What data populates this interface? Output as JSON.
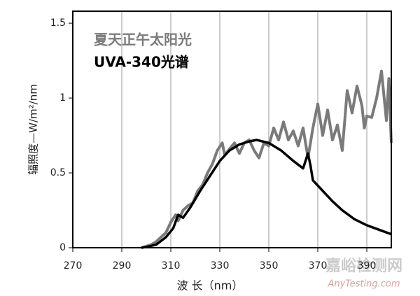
{
  "chart_data": {
    "type": "line",
    "xlabel": "波 长（nm）",
    "ylabel": "辐照度—W/m²/nm",
    "xlim": [
      270,
      400
    ],
    "xticks": [
      270,
      290,
      310,
      330,
      350,
      370,
      390
    ],
    "ylim": [
      0,
      1.58
    ],
    "yticks": [
      0,
      0.5,
      1,
      1.5
    ],
    "xgrid": true,
    "series": [
      {
        "name": "夏天正午太阳光",
        "color": "#7a7a7a",
        "x": [
          298,
          300,
          302,
          304,
          306,
          308,
          310,
          312,
          313,
          315,
          317,
          319,
          321,
          323,
          325,
          327,
          329,
          331,
          332,
          334,
          336,
          338,
          340,
          342,
          344,
          346,
          348,
          350,
          352,
          354,
          356,
          358,
          360,
          362,
          364,
          366,
          368,
          370,
          372,
          374,
          376,
          378,
          380,
          382,
          384,
          386,
          388,
          389,
          390,
          392,
          394,
          396,
          398,
          399,
          400
        ],
        "values": [
          0,
          0.01,
          0.02,
          0.04,
          0.07,
          0.1,
          0.17,
          0.22,
          0.18,
          0.25,
          0.28,
          0.3,
          0.38,
          0.42,
          0.5,
          0.56,
          0.65,
          0.7,
          0.62,
          0.66,
          0.7,
          0.63,
          0.7,
          0.72,
          0.65,
          0.6,
          0.7,
          0.68,
          0.8,
          0.72,
          0.84,
          0.72,
          0.78,
          0.68,
          0.8,
          0.6,
          0.8,
          0.96,
          0.75,
          0.92,
          0.72,
          0.82,
          0.65,
          1.05,
          0.9,
          1.08,
          0.95,
          0.8,
          0.88,
          0.87,
          1.0,
          1.18,
          0.85,
          1.13,
          0.7
        ]
      },
      {
        "name": "UVA-340光谱",
        "color": "#000000",
        "x": [
          298,
          300,
          304,
          308,
          311,
          313,
          315,
          318,
          322,
          326,
          330,
          334,
          338,
          342,
          345,
          350,
          355,
          360,
          364,
          366,
          367,
          368,
          372,
          376,
          380,
          385,
          390,
          395,
          400
        ],
        "values": [
          0,
          0.005,
          0.02,
          0.07,
          0.13,
          0.22,
          0.2,
          0.27,
          0.38,
          0.48,
          0.58,
          0.65,
          0.69,
          0.71,
          0.72,
          0.7,
          0.65,
          0.58,
          0.53,
          0.63,
          0.55,
          0.45,
          0.38,
          0.31,
          0.25,
          0.19,
          0.15,
          0.12,
          0.09
        ]
      }
    ],
    "watermark": [
      "嘉峪检测网",
      "AnyTesting.com"
    ]
  }
}
